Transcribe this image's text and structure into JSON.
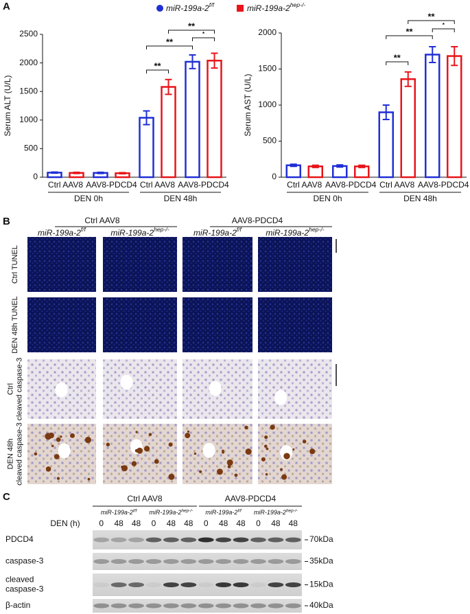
{
  "panel_labels": [
    "A",
    "B",
    "C"
  ],
  "chart_data": [
    {
      "type": "bar",
      "ylabel": "Serum ALT (U/L)",
      "ylim": [
        0,
        2500
      ],
      "yticks": [
        0,
        500,
        1000,
        1500,
        2000,
        2500
      ],
      "categories": [
        "Ctrl AAV8",
        "AAV8-PDCD4",
        "Ctrl AAV8",
        "AAV8-PDCD4"
      ],
      "groups": [
        "DEN 0h",
        "DEN 48h"
      ],
      "series": [
        {
          "name": "miR-199a-2",
          "superscript": "f/f",
          "color": "#1f2fd6",
          "values": [
            80,
            75,
            1040,
            2020
          ],
          "errors": [
            10,
            10,
            120,
            120
          ]
        },
        {
          "name": "miR-199a-2",
          "superscript": "hep-/-",
          "color": "#e8141a",
          "values": [
            75,
            70,
            1580,
            2040
          ],
          "errors": [
            10,
            10,
            130,
            130
          ]
        }
      ],
      "annotations": [
        "**",
        "**",
        "**",
        "*"
      ]
    },
    {
      "type": "bar",
      "ylabel": "Serum AST (U/L)",
      "ylim": [
        0,
        2000
      ],
      "yticks": [
        0,
        500,
        1000,
        1500,
        2000
      ],
      "categories": [
        "Ctrl AAV8",
        "AAV8-PDCD4",
        "Ctrl AAV8",
        "AAV8-PDCD4"
      ],
      "groups": [
        "DEN 0h",
        "DEN 48h"
      ],
      "series": [
        {
          "color": "#1f2fd6",
          "values": [
            165,
            155,
            900,
            1700
          ],
          "errors": [
            15,
            15,
            100,
            110
          ]
        },
        {
          "color": "#e8141a",
          "values": [
            150,
            150,
            1360,
            1680
          ],
          "errors": [
            15,
            15,
            100,
            130
          ]
        }
      ],
      "annotations": [
        "**",
        "**",
        "**",
        "*"
      ]
    }
  ],
  "panel_b": {
    "column_groups": [
      "Ctrl AAV8",
      "AAV8-PDCD4"
    ],
    "genotypes": [
      {
        "name": "miR-199a-2",
        "superscript": "f/f"
      },
      {
        "name": "miR-199a-2",
        "superscript": "hep-/-"
      },
      {
        "name": "miR-199a-2",
        "superscript": "f/f"
      },
      {
        "name": "miR-199a-2",
        "superscript": "hep-/-"
      }
    ],
    "rows": [
      [
        "Ctrl TUNEL"
      ],
      [
        "DEN 48h TUNEL"
      ],
      [
        "Ctrl",
        "cleaved caspase-3"
      ],
      [
        "DEN 48h",
        "cleaved caspase-3"
      ]
    ]
  },
  "panel_c": {
    "column_groups": [
      "Ctrl AAV8",
      "AAV8-PDCD4"
    ],
    "genotypes": [
      {
        "name": "miR-199a-2",
        "superscript": "f/f"
      },
      {
        "name": "miR-199a-2",
        "superscript": "hep-/-"
      },
      {
        "name": "miR-199a-2",
        "superscript": "f/f"
      },
      {
        "name": "miR-199a-2",
        "superscript": "hep-/-"
      }
    ],
    "den_label": "DEN (h)",
    "lanes": [
      "0",
      "48",
      "48",
      "0",
      "48",
      "48",
      "0",
      "48",
      "48",
      "0",
      "48",
      "48"
    ],
    "rows": [
      {
        "label": [
          "PDCD4"
        ],
        "marker": "70kDa"
      },
      {
        "label": [
          "caspase-3"
        ],
        "marker": "35kDa"
      },
      {
        "label": [
          "cleaved",
          "caspase-3"
        ],
        "marker": "15kDa"
      },
      {
        "label": [
          "β-actin"
        ],
        "marker": "40kDa"
      }
    ]
  }
}
